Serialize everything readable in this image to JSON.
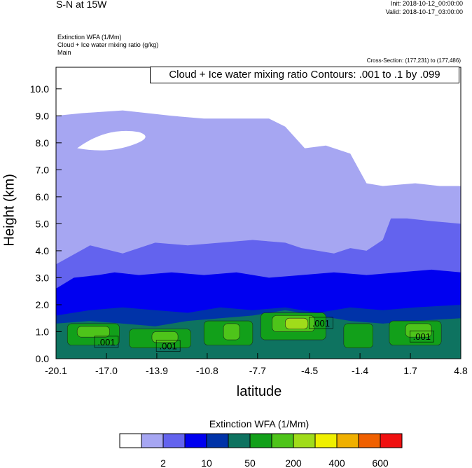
{
  "header": {
    "title": "S-N at 15W",
    "init": "Init: 2018-10-12_00:00:00",
    "valid": "Valid: 2018-10-17_03:00:00",
    "fields": [
      "Extinction WFA   (1/Mm)",
      "Cloud + Ice water mixing ratio   (g/kg)",
      "Main"
    ],
    "cross_section": "Cross-Section: (177,231) to (177,486)",
    "contour_info": "Cloud + Ice water mixing ratio Contours: .001 to .1 by .099"
  },
  "chart_data": {
    "type": "heatmap",
    "xlabel": "latitude",
    "ylabel": "Height (km)",
    "xlim": [
      -20.1,
      4.8
    ],
    "ylim": [
      0,
      10.8
    ],
    "x_ticks": [
      "-20.1",
      "-17.0",
      "-13.9",
      "-10.8",
      "-7.7",
      "-4.5",
      "-1.4",
      "1.7",
      "4.8"
    ],
    "x_tick_values": [
      -20.1,
      -17.0,
      -13.9,
      -10.8,
      -7.7,
      -4.5,
      -1.4,
      1.7,
      4.8
    ],
    "y_ticks": [
      "0.0",
      "1.0",
      "2.0",
      "3.0",
      "4.0",
      "5.0",
      "6.0",
      "7.0",
      "8.0",
      "9.0",
      "10.0"
    ],
    "y_tick_values": [
      0,
      1,
      2,
      3,
      4,
      5,
      6,
      7,
      8,
      9,
      10
    ],
    "layers": [
      {
        "level": "2",
        "color": "#a6a6f2",
        "top": [
          [
            -20.1,
            9.0
          ],
          [
            -18.5,
            9.1
          ],
          [
            -16,
            9.2
          ],
          [
            -13,
            9.0
          ],
          [
            -11,
            8.9
          ],
          [
            -9,
            8.9
          ],
          [
            -7,
            8.9
          ],
          [
            -6,
            8.6
          ],
          [
            -4.8,
            7.8
          ],
          [
            -3.5,
            7.9
          ],
          [
            -2,
            7.6
          ],
          [
            -1,
            6.5
          ],
          [
            0,
            6.4
          ],
          [
            2,
            6.5
          ],
          [
            3.5,
            6.4
          ],
          [
            4.8,
            6.4
          ]
        ]
      },
      {
        "level": "10",
        "color": "#6363ee",
        "top": [
          [
            -20.1,
            3.5
          ],
          [
            -18,
            4.2
          ],
          [
            -16,
            3.9
          ],
          [
            -14,
            4.3
          ],
          [
            -12,
            4.2
          ],
          [
            -10,
            4.3
          ],
          [
            -8,
            4.4
          ],
          [
            -6,
            4.3
          ],
          [
            -5,
            4.1
          ],
          [
            -3,
            3.9
          ],
          [
            -2,
            4.1
          ],
          [
            -1,
            4.0
          ],
          [
            0,
            4.4
          ],
          [
            0.5,
            5.2
          ],
          [
            1.5,
            5.2
          ],
          [
            3,
            5.1
          ],
          [
            4.8,
            5.0
          ]
        ]
      },
      {
        "level": "50",
        "color": "#0000f0",
        "top": [
          [
            -20.1,
            2.6
          ],
          [
            -19,
            3.0
          ],
          [
            -17.5,
            3.1
          ],
          [
            -16.5,
            3.2
          ],
          [
            -15,
            3.1
          ],
          [
            -13,
            3.2
          ],
          [
            -11,
            3.1
          ],
          [
            -9,
            3.2
          ],
          [
            -7,
            3.0
          ],
          [
            -5,
            3.1
          ],
          [
            -3,
            3.2
          ],
          [
            -1,
            3.1
          ],
          [
            1,
            3.2
          ],
          [
            3,
            3.3
          ],
          [
            4.8,
            3.2
          ]
        ]
      },
      {
        "level": "100",
        "color": "#0033a8",
        "top": [
          [
            -20.1,
            1.6
          ],
          [
            -18,
            1.8
          ],
          [
            -16,
            1.9
          ],
          [
            -14,
            1.8
          ],
          [
            -12,
            1.7
          ],
          [
            -10,
            1.9
          ],
          [
            -8,
            1.8
          ],
          [
            -6,
            1.9
          ],
          [
            -4,
            1.7
          ],
          [
            -2,
            1.9
          ],
          [
            0,
            1.8
          ],
          [
            2,
            1.9
          ],
          [
            4.8,
            2.0
          ]
        ]
      },
      {
        "level": "200",
        "color": "#0e7360",
        "top": [
          [
            -20.1,
            1.3
          ],
          [
            -18,
            1.4
          ],
          [
            -16,
            1.3
          ],
          [
            -14,
            1.2
          ],
          [
            -12,
            1.4
          ],
          [
            -10,
            1.5
          ],
          [
            -8,
            1.6
          ],
          [
            -6,
            1.8
          ],
          [
            -4,
            1.6
          ],
          [
            -2,
            1.4
          ],
          [
            0,
            1.3
          ],
          [
            2,
            1.4
          ],
          [
            4.8,
            1.5
          ]
        ]
      }
    ],
    "cells": [
      {
        "level": "300",
        "color": "#12a01a",
        "x": [
          -19.4,
          -16.2
        ],
        "y": [
          0.5,
          1.3
        ]
      },
      {
        "level": "300",
        "color": "#12a01a",
        "x": [
          -15.6,
          -11.8
        ],
        "y": [
          0.4,
          1.1
        ]
      },
      {
        "level": "300",
        "color": "#12a01a",
        "x": [
          -11.0,
          -8.0
        ],
        "y": [
          0.5,
          1.4
        ]
      },
      {
        "level": "300",
        "color": "#12a01a",
        "x": [
          -7.5,
          -3.5
        ],
        "y": [
          0.7,
          1.7
        ]
      },
      {
        "level": "300",
        "color": "#12a01a",
        "x": [
          -2.4,
          -0.6
        ],
        "y": [
          0.4,
          1.3
        ]
      },
      {
        "level": "300",
        "color": "#12a01a",
        "x": [
          0.4,
          3.6
        ],
        "y": [
          0.5,
          1.4
        ]
      },
      {
        "level": "400",
        "color": "#4ec41a",
        "x": [
          -18.8,
          -16.8
        ],
        "y": [
          0.8,
          1.2
        ]
      },
      {
        "level": "400",
        "color": "#4ec41a",
        "x": [
          -14.2,
          -12.6
        ],
        "y": [
          0.6,
          1.0
        ]
      },
      {
        "level": "400",
        "color": "#4ec41a",
        "x": [
          -9.8,
          -8.8
        ],
        "y": [
          0.7,
          1.3
        ]
      },
      {
        "level": "400",
        "color": "#4ec41a",
        "x": [
          -6.8,
          -4.2
        ],
        "y": [
          1.0,
          1.6
        ]
      },
      {
        "level": "500",
        "color": "#a0dc1a",
        "x": [
          -6.0,
          -4.6
        ],
        "y": [
          1.1,
          1.5
        ]
      },
      {
        "level": "400",
        "color": "#4ec41a",
        "x": [
          1.4,
          3.0
        ],
        "y": [
          0.8,
          1.3
        ]
      }
    ],
    "contour_labels": [
      {
        "text": ".001",
        "x": -17.0,
        "y": 0.6
      },
      {
        "text": ".001",
        "x": -13.2,
        "y": 0.45
      },
      {
        "text": ".001",
        "x": -3.8,
        "y": 1.3
      },
      {
        "text": ".001",
        "x": 2.4,
        "y": 0.8
      }
    ],
    "colorbar": {
      "title": "Extinction WFA  (1/Mm)",
      "colors": [
        "#ffffff",
        "#a6a6f2",
        "#6363ee",
        "#0000f0",
        "#0033a8",
        "#0e7360",
        "#12a01a",
        "#4ec41a",
        "#a0dc1a",
        "#f0f000",
        "#f0b000",
        "#f06000",
        "#f01010"
      ],
      "labels": [
        {
          "text": "2",
          "after_box": 1
        },
        {
          "text": "10",
          "after_box": 3
        },
        {
          "text": "50",
          "after_box": 5
        },
        {
          "text": "200",
          "after_box": 7
        },
        {
          "text": "400",
          "after_box": 9
        },
        {
          "text": "600",
          "after_box": 11
        }
      ]
    }
  }
}
